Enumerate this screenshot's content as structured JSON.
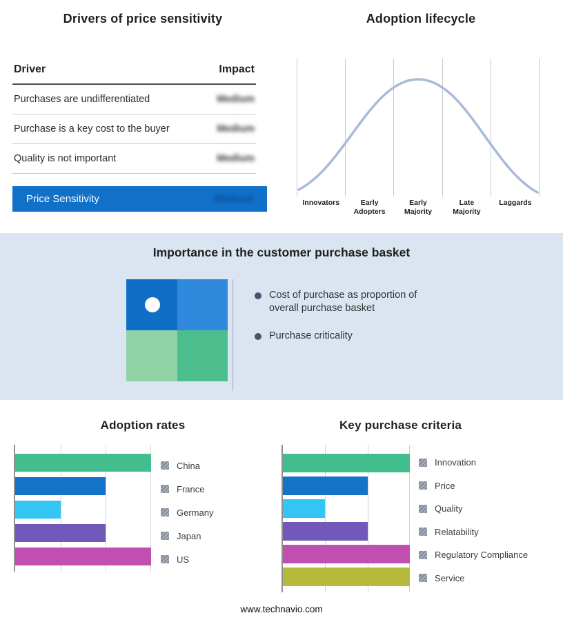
{
  "drivers_panel": {
    "title": "Drivers of price sensitivity",
    "columns": {
      "driver": "Driver",
      "impact": "Impact"
    },
    "rows": [
      {
        "driver": "Purchases are undifferentiated",
        "impact": "Medium"
      },
      {
        "driver": "Purchase is a key cost to the buyer",
        "impact": "Medium"
      },
      {
        "driver": "Quality is not important",
        "impact": "Medium"
      }
    ],
    "summary": {
      "label": "Price Sensitivity",
      "impact": "Medium"
    },
    "highlight_color": "#1170c8"
  },
  "basket_panel": {
    "title": "Importance in the customer purchase basket",
    "bullets": [
      "Cost of purchase as proportion of overall purchase basket",
      "Purchase criticality"
    ],
    "quadrant_colors": {
      "top_left": "#0f6fc6",
      "top_right": "#2f8ade",
      "bottom_left": "#8fd3a6",
      "bottom_right": "#4cbd8d"
    },
    "band_color": "#dbe5f1"
  },
  "chart_data": [
    {
      "id": "adoption_lifecycle",
      "type": "line",
      "title": "Adoption lifecycle",
      "x_categories": [
        "Innovators",
        "Early Adopters",
        "Early Majority",
        "Late Majority",
        "Laggards"
      ],
      "description": "Bell-shaped adoption curve rising from Innovators, peaking at Early Majority, falling to Laggards",
      "curve_color": "#a9bbd6",
      "grid": "vertical"
    },
    {
      "id": "adoption_rates",
      "type": "bar",
      "orientation": "horizontal",
      "title": "Adoption rates",
      "categories": [
        "China",
        "France",
        "Germany",
        "Japan",
        "US"
      ],
      "values": [
        3,
        2,
        1,
        2,
        3
      ],
      "xlim": [
        0,
        3
      ],
      "colors": [
        "#42bd8d",
        "#1373c9",
        "#33c6f4",
        "#7258b8",
        "#c04fb0"
      ],
      "legend_position": "right",
      "grid": "vertical"
    },
    {
      "id": "key_purchase_criteria",
      "type": "bar",
      "orientation": "horizontal",
      "title": "Key purchase criteria",
      "categories": [
        "Innovation",
        "Price",
        "Quality",
        "Relatability",
        "Regulatory Compliance",
        "Service"
      ],
      "values": [
        3,
        2,
        1,
        2,
        3,
        3
      ],
      "xlim": [
        0,
        3
      ],
      "colors": [
        "#42bd8d",
        "#1373c9",
        "#33c6f4",
        "#7258b8",
        "#c04fb0",
        "#b6ba3a"
      ],
      "legend_position": "right",
      "grid": "vertical"
    }
  ],
  "footer": {
    "site": "www.technavio.com"
  }
}
